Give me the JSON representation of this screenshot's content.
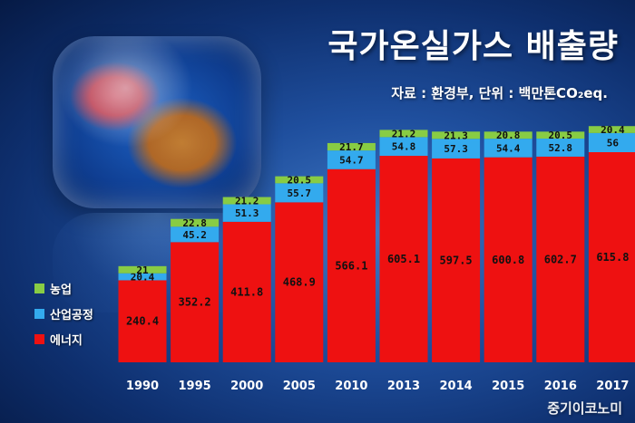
{
  "title": "국가온실가스 배출량",
  "subtitle": "자료 : 환경부, 단위 : 백만톤CO₂eq.",
  "watermark": "중기이코노미",
  "colors": {
    "energy": "#ee1111",
    "industry": "#33aaee",
    "agriculture": "#88cc44"
  },
  "chart_data": {
    "type": "bar",
    "stacked": true,
    "categories": [
      "1990",
      "1995",
      "2000",
      "2005",
      "2010",
      "2013",
      "2014",
      "2015",
      "2016",
      "2017"
    ],
    "series": [
      {
        "name": "에너지",
        "key": "energy",
        "values": [
          240.4,
          352.2,
          411.8,
          468.9,
          566.1,
          605.1,
          597.5,
          600.8,
          602.7,
          615.8
        ]
      },
      {
        "name": "산업공정",
        "key": "industry",
        "values": [
          20.4,
          45.2,
          51.3,
          55.7,
          54.7,
          54.8,
          57.3,
          54.4,
          52.8,
          56
        ]
      },
      {
        "name": "농업",
        "key": "agriculture",
        "values": [
          21,
          22.8,
          21.2,
          20.5,
          21.7,
          21.2,
          21.3,
          20.8,
          20.5,
          20.4
        ]
      }
    ],
    "legend_position": "left",
    "grid": false
  }
}
